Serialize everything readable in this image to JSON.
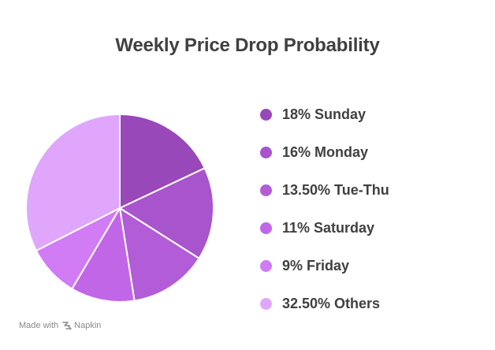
{
  "chart_data": {
    "type": "pie",
    "title": "Weekly Price Drop Probability",
    "slices": [
      {
        "label": "18% Sunday",
        "value": 18,
        "color": "#9848b8"
      },
      {
        "label": "16% Monday",
        "value": 16,
        "color": "#a854cc"
      },
      {
        "label": "13.50% Tue-Thu",
        "value": 13.5,
        "color": "#b35cd8"
      },
      {
        "label": "11% Saturday",
        "value": 11,
        "color": "#c266e8"
      },
      {
        "label": "9% Friday",
        "value": 9,
        "color": "#d17bf4"
      },
      {
        "label": "32.50% Others",
        "value": 32.5,
        "color": "#e0a6fc"
      }
    ],
    "legend_position": "right"
  },
  "footer": {
    "made_with": "Made with",
    "brand": "Napkin",
    "brand_icon": "napkin-logo-icon"
  }
}
